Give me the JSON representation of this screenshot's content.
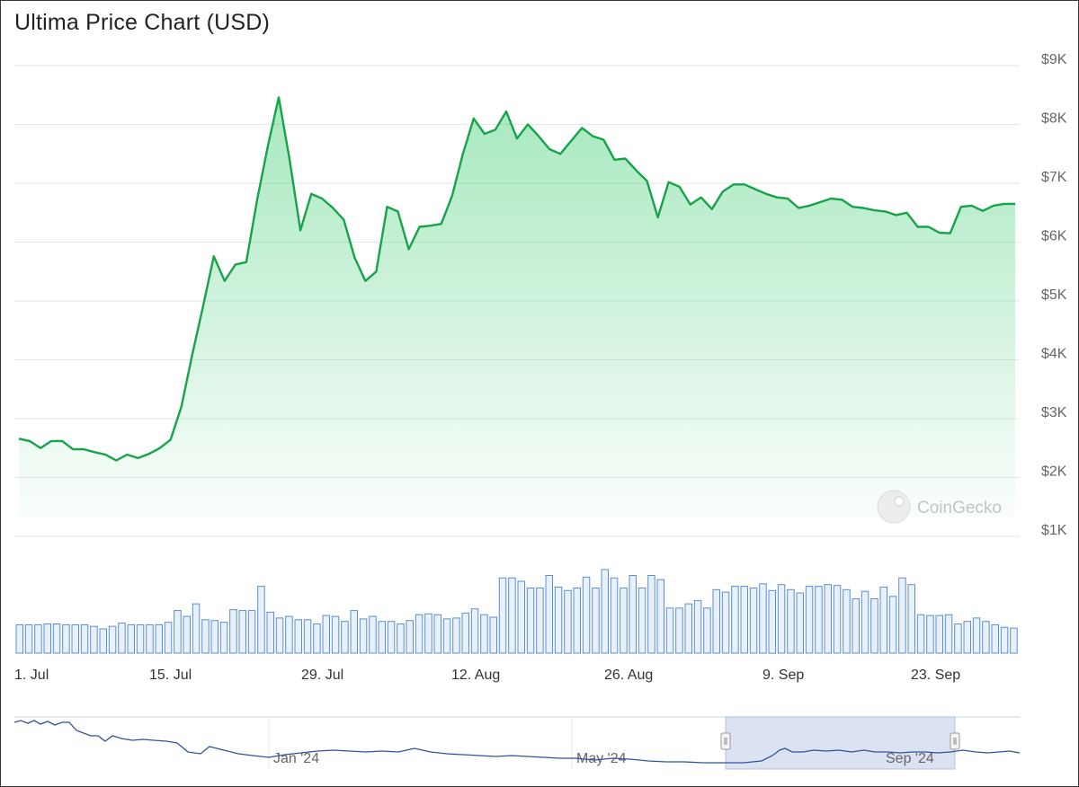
{
  "title": "Ultima Price Chart (USD)",
  "watermark": "CoinGecko",
  "colors": {
    "price_line": "#16a34a",
    "area_fill": "#22c55e",
    "volume_bar_stroke": "#5a8fd0",
    "volume_bar_fill": "#e8f0fb",
    "navigator_line": "#2f5597",
    "navigator_selection": "#d5ddef"
  },
  "chart_data": {
    "type": "area",
    "title": "Ultima Price Chart (USD)",
    "y_axis": {
      "ticks": [
        "$1K",
        "$2K",
        "$3K",
        "$4K",
        "$5K",
        "$6K",
        "$7K",
        "$8K",
        "$9K"
      ],
      "tick_values": [
        1000,
        2000,
        3000,
        4000,
        5000,
        6000,
        7000,
        8000,
        9000
      ],
      "range": [
        1000,
        9000
      ],
      "position": "right"
    },
    "x_axis": {
      "ticks": [
        "1. Jul",
        "15. Jul",
        "29. Jul",
        "12. Aug",
        "26. Aug",
        "9. Sep",
        "23. Sep"
      ],
      "tick_days": [
        0,
        14,
        28,
        42,
        56,
        70,
        84
      ],
      "range_days": [
        0,
        92
      ]
    },
    "grid": true,
    "series": [
      {
        "type": "line",
        "x_days": [
          0,
          1,
          2,
          3,
          4,
          5,
          6,
          7,
          8,
          9,
          10,
          11,
          12,
          13,
          14,
          15,
          16,
          17,
          18,
          19,
          20,
          21,
          22,
          23,
          24,
          25,
          26,
          27,
          28,
          29,
          30,
          31,
          32,
          33,
          34,
          35,
          36,
          37,
          38,
          39,
          40,
          41,
          42,
          43,
          44,
          45,
          46,
          47,
          48,
          49,
          50,
          51,
          52,
          53,
          54,
          55,
          56,
          57,
          58,
          59,
          60,
          61,
          62,
          63,
          64,
          65,
          66,
          67,
          68,
          69,
          70,
          71,
          72,
          73,
          74,
          75,
          76,
          77,
          78,
          79,
          80,
          81,
          82,
          83,
          84,
          85,
          86,
          87,
          88,
          89,
          90,
          91,
          92
        ],
        "values": [
          2660,
          2620,
          2500,
          2620,
          2620,
          2480,
          2480,
          2430,
          2390,
          2290,
          2390,
          2330,
          2400,
          2500,
          2640,
          3200,
          4080,
          4900,
          5760,
          5340,
          5620,
          5660,
          6720,
          7640,
          8460,
          7400,
          6200,
          6820,
          6740,
          6580,
          6380,
          5740,
          5340,
          5500,
          6600,
          6520,
          5880,
          6260,
          6280,
          6310,
          6780,
          7500,
          8100,
          7840,
          7910,
          8220,
          7760,
          8000,
          7800,
          7580,
          7500,
          7720,
          7940,
          7800,
          7740,
          7400,
          7420,
          7220,
          7040,
          6420,
          7020,
          6940,
          6640,
          6760,
          6560,
          6860,
          6980,
          6980,
          6900,
          6820,
          6760,
          6740,
          6580,
          6620,
          6680,
          6740,
          6720,
          6600,
          6580,
          6540,
          6520,
          6460,
          6500,
          6260,
          6260,
          6160,
          6150,
          6600,
          6620,
          6530,
          6620,
          6650,
          6650
        ]
      },
      {
        "name": "",
        "type": "volume_bars",
        "relative_heights": [
          0.34,
          0.34,
          0.34,
          0.35,
          0.35,
          0.34,
          0.34,
          0.34,
          0.32,
          0.29,
          0.32,
          0.36,
          0.34,
          0.34,
          0.34,
          0.34,
          0.37,
          0.51,
          0.44,
          0.59,
          0.4,
          0.39,
          0.37,
          0.52,
          0.51,
          0.51,
          0.8,
          0.49,
          0.42,
          0.44,
          0.4,
          0.4,
          0.35,
          0.45,
          0.44,
          0.38,
          0.51,
          0.41,
          0.44,
          0.38,
          0.38,
          0.35,
          0.39,
          0.46,
          0.47,
          0.46,
          0.41,
          0.42,
          0.48,
          0.53,
          0.46,
          0.43,
          0.9,
          0.9,
          0.86,
          0.78,
          0.78,
          0.93,
          0.79,
          0.75,
          0.78,
          0.91,
          0.78,
          1.0,
          0.9,
          0.78,
          0.93,
          0.78,
          0.93,
          0.88,
          0.54,
          0.54,
          0.59,
          0.63,
          0.54,
          0.76,
          0.73,
          0.8,
          0.8,
          0.78,
          0.83,
          0.75,
          0.82,
          0.76,
          0.72,
          0.8,
          0.8,
          0.82,
          0.81,
          0.76,
          0.65,
          0.74,
          0.65,
          0.79,
          0.68,
          0.9,
          0.82,
          0.46,
          0.45,
          0.45,
          0.46,
          0.35,
          0.38,
          0.42,
          0.38,
          0.34,
          0.31,
          0.3
        ]
      }
    ],
    "navigator": {
      "ticks": [
        "Jan '24",
        "May '24",
        "Sep '24"
      ],
      "selected_range": [
        "1. Jul",
        "23. Sep"
      ]
    }
  }
}
